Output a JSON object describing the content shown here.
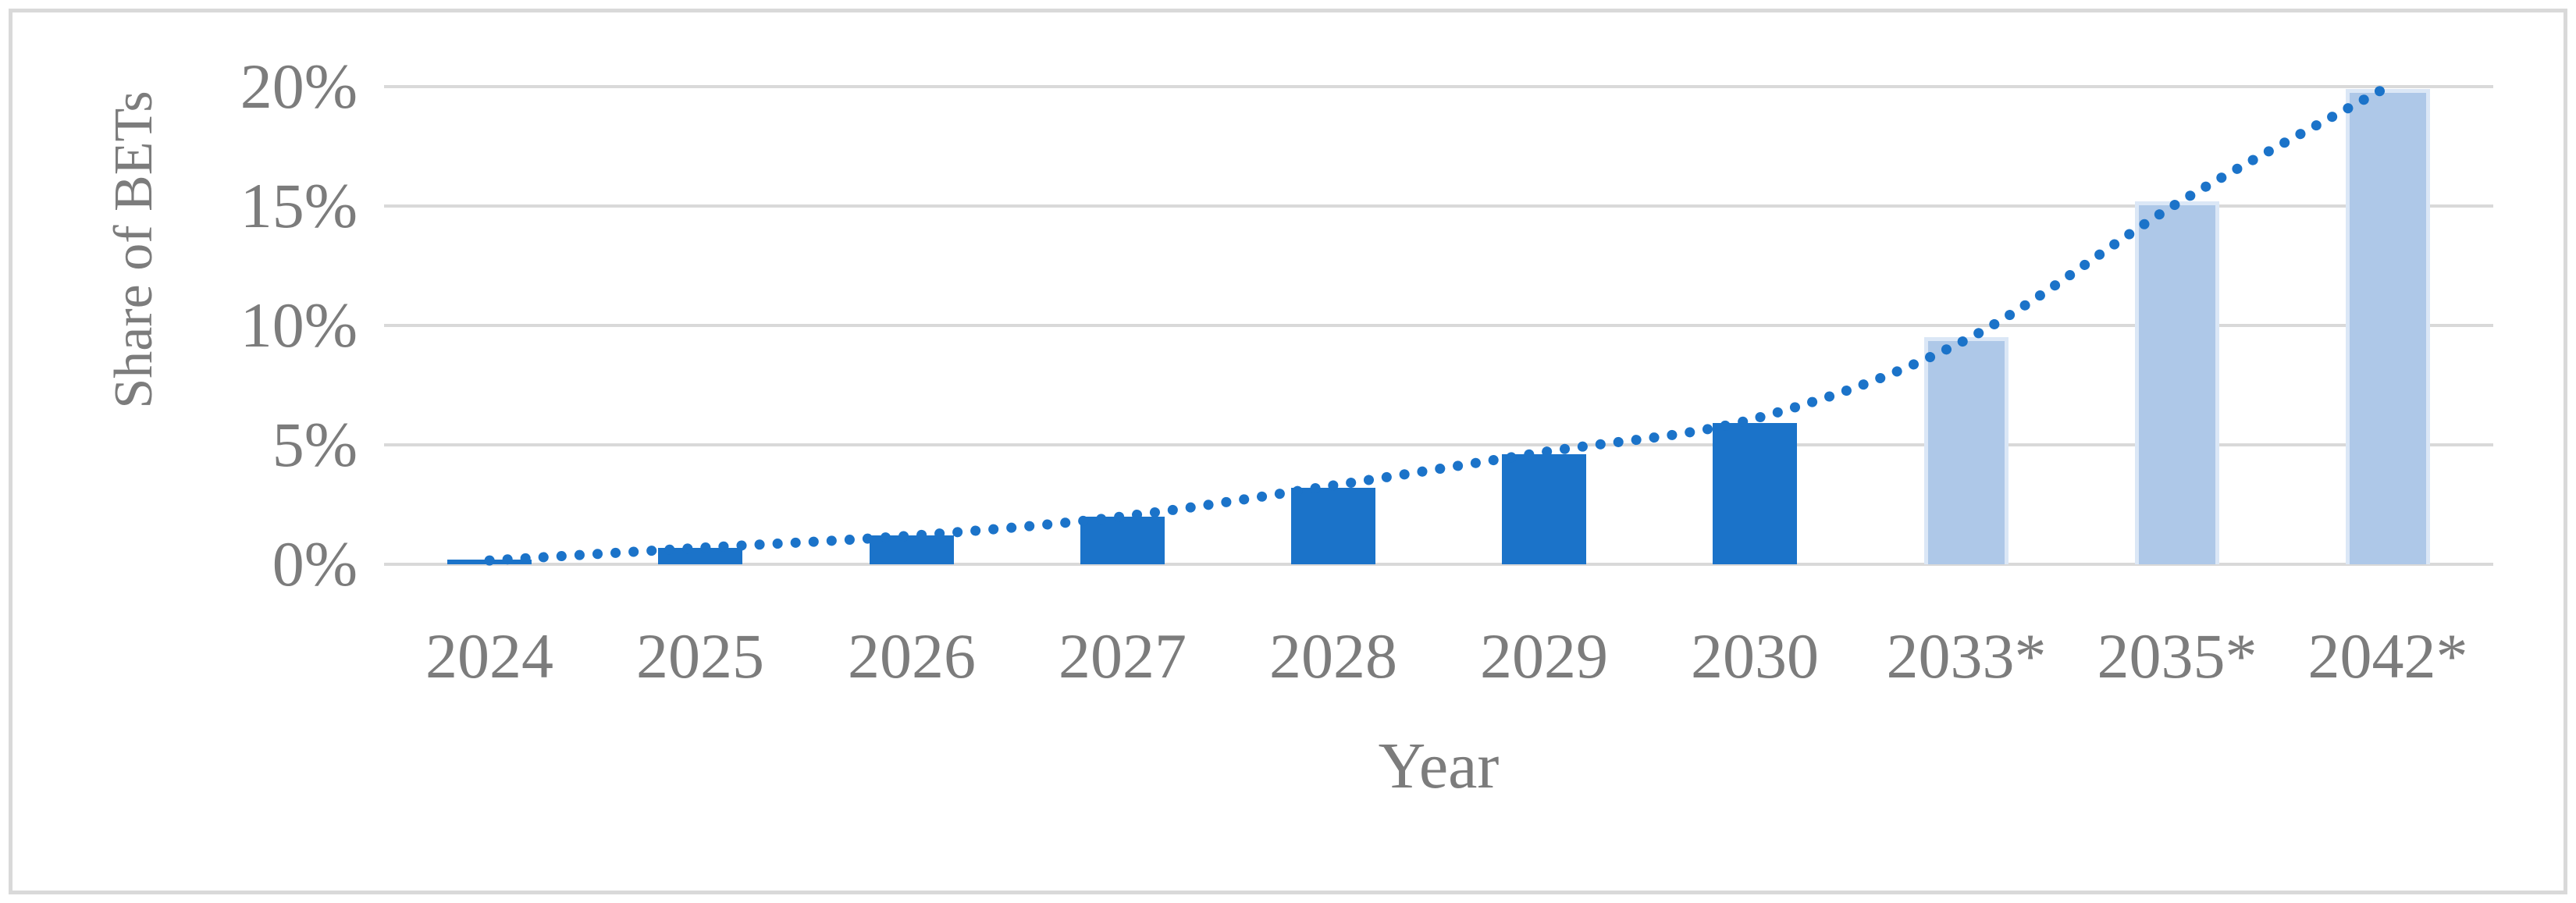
{
  "chart_data": {
    "type": "bar",
    "title": "",
    "xlabel": "Year",
    "ylabel": "Share of BETs",
    "categories": [
      "2024",
      "2025",
      "2026",
      "2027",
      "2028",
      "2029",
      "2030",
      "2033*",
      "2035*",
      "2042*"
    ],
    "series": [
      {
        "name": "bars",
        "type": "bar",
        "values": [
          0.2,
          0.7,
          1.2,
          2.0,
          3.2,
          4.6,
          5.9,
          9.5,
          15.2,
          19.9
        ],
        "bar_styles": [
          "dark",
          "dark",
          "dark",
          "dark",
          "dark",
          "dark",
          "dark",
          "light",
          "light",
          "light"
        ]
      },
      {
        "name": "trend",
        "type": "dotted-line",
        "values": [
          0.16,
          0.69,
          1.2,
          2.0,
          3.3,
          4.7,
          6.1,
          9.4,
          15.1,
          20.0
        ]
      }
    ],
    "yticks": [
      "0%",
      "5%",
      "10%",
      "15%",
      "20%"
    ],
    "ylim": [
      0,
      20
    ],
    "grid": "horizontal",
    "legend": "none"
  },
  "colors": {
    "dark_bar": "#1b73c9",
    "light_bar": "#aec8e8",
    "light_bar_border": "#dbe7f6",
    "trendline": "#1b73c9",
    "gridline": "#d9d9d9",
    "frame_border": "#d9d9d9",
    "axis_text": "#7c7c7c",
    "background": "#ffffff"
  }
}
